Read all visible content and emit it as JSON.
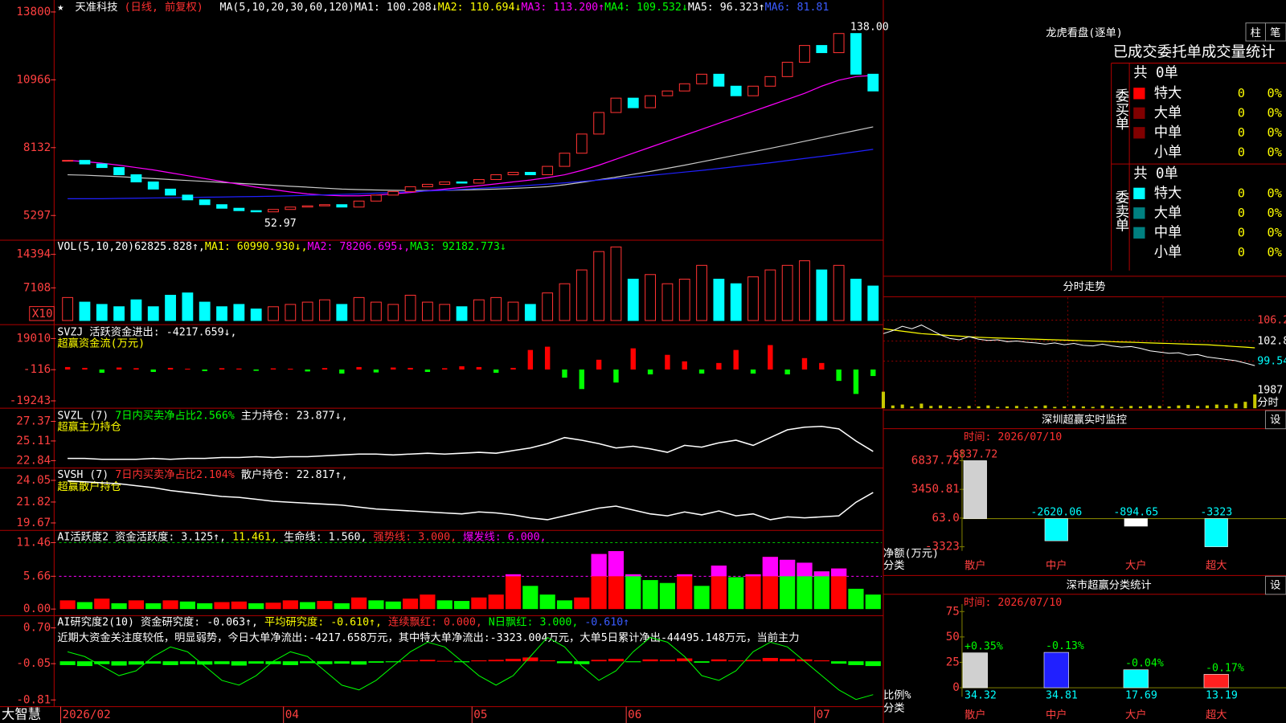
{
  "header": {
    "icon": "★",
    "name": "天准科技",
    "mode": "(日线, 前复权)",
    "items": [
      {
        "text": "MA(5,10,20,30,60,120)",
        "color": "#ffffff"
      },
      {
        "text": "MA1: 100.208↓",
        "color": "#ffffff"
      },
      {
        "text": "MA2: 110.694↓",
        "color": "#ffff00"
      },
      {
        "text": "MA3: 113.200↑",
        "color": "#ff00ff"
      },
      {
        "text": "MA4: 109.532↓",
        "color": "#00ff00"
      },
      {
        "text": "MA5: 96.323↑",
        "color": "#ffffff"
      },
      {
        "text": "MA6: 81.81",
        "color": "#3a5bff"
      }
    ]
  },
  "dates": [
    "2026/02",
    null,
    null,
    null,
    null,
    null,
    null,
    null,
    null,
    null,
    null,
    null,
    null,
    "04",
    null,
    null,
    null,
    null,
    null,
    null,
    null,
    null,
    null,
    null,
    "05",
    null,
    null,
    null,
    null,
    null,
    null,
    null,
    null,
    "06",
    null,
    null,
    null,
    null,
    null,
    null,
    null,
    null,
    null,
    null,
    "07",
    null,
    null,
    null
  ],
  "price": {
    "ylim": [
      4300,
      14300
    ],
    "yticks": [
      13800,
      10966,
      8132,
      5297
    ],
    "up_color": "#ff3232",
    "down_color": "#00ffff",
    "high_label": "138.00",
    "low_label": "52.97",
    "close": [
      7600,
      7450,
      7300,
      7000,
      6700,
      6400,
      6150,
      5950,
      5750,
      5600,
      5500,
      5450,
      5550,
      5650,
      5700,
      5750,
      5650,
      5900,
      6150,
      6300,
      6500,
      6600,
      6700,
      6650,
      6800,
      7000,
      7100,
      7000,
      7350,
      7900,
      8700,
      9600,
      10200,
      9800,
      10300,
      10500,
      10800,
      11200,
      10700,
      10300,
      10700,
      11100,
      11700,
      12400,
      12100,
      12900,
      11200,
      10500
    ],
    "lines": [
      {
        "color": "#c8c8c8",
        "values": [
          7000,
          6980,
          6950,
          6920,
          6880,
          6840,
          6800,
          6760,
          6720,
          6680,
          6640,
          6600,
          6560,
          6520,
          6480,
          6440,
          6400,
          6380,
          6360,
          6350,
          6340,
          6340,
          6350,
          6360,
          6380,
          6400,
          6430,
          6460,
          6500,
          6580,
          6680,
          6790,
          6900,
          7020,
          7140,
          7270,
          7400,
          7540,
          7680,
          7820,
          7960,
          8100,
          8250,
          8400,
          8550,
          8700,
          8850,
          9000
        ]
      },
      {
        "color": "#ff00ff",
        "values": [
          7600,
          7550,
          7480,
          7400,
          7300,
          7200,
          7080,
          6960,
          6840,
          6720,
          6600,
          6480,
          6380,
          6280,
          6200,
          6150,
          6120,
          6120,
          6150,
          6200,
          6260,
          6330,
          6400,
          6470,
          6540,
          6620,
          6700,
          6780,
          6880,
          7000,
          7180,
          7400,
          7650,
          7900,
          8150,
          8400,
          8650,
          8900,
          9150,
          9400,
          9650,
          9900,
          10150,
          10400,
          10700,
          10950,
          11100,
          11150
        ]
      },
      {
        "color": "#2020ff",
        "values": [
          6000,
          6000,
          6000,
          6010,
          6020,
          6030,
          6040,
          6050,
          6060,
          6070,
          6080,
          6090,
          6100,
          6120,
          6140,
          6160,
          6180,
          6200,
          6230,
          6260,
          6290,
          6320,
          6350,
          6390,
          6430,
          6470,
          6510,
          6560,
          6610,
          6660,
          6720,
          6780,
          6840,
          6900,
          6970,
          7040,
          7110,
          7180,
          7260,
          7340,
          7420,
          7500,
          7590,
          7680,
          7770,
          7860,
          7960,
          8060
        ]
      }
    ]
  },
  "volume": {
    "legend": [
      {
        "text": "VOL(5,10,20)",
        "color": "#ffffff"
      },
      {
        "text": "62825.828↑,",
        "color": "#ffffff"
      },
      {
        "text": "MA1: 60990.930↓,",
        "color": "#ffff00"
      },
      {
        "text": "MA2: 78206.695↓,",
        "color": "#ff00ff"
      },
      {
        "text": "MA3: 92182.773↓",
        "color": "#00ff00"
      }
    ],
    "unit": "X10",
    "ylim": [
      0,
      17300
    ],
    "yticks": [
      14394,
      7108
    ],
    "values": [
      5000,
      4000,
      3500,
      3000,
      4500,
      3000,
      5500,
      6000,
      4000,
      3000,
      3500,
      2500,
      3000,
      3500,
      4000,
      4500,
      3500,
      5000,
      4000,
      3500,
      5500,
      4000,
      3500,
      3000,
      4500,
      5000,
      4000,
      3500,
      6000,
      8000,
      11000,
      15000,
      16000,
      9000,
      10000,
      8000,
      9000,
      12000,
      9000,
      8000,
      9500,
      11000,
      12000,
      13000,
      11000,
      12000,
      9000,
      7500
    ]
  },
  "svzj": {
    "legend": [
      {
        "text": "SVZJ  活跃资金进出: -4217.659↓,",
        "color": "#ffffff"
      }
    ],
    "subtitle": "超赢资金流(万元)",
    "ylim": [
      -23270,
      27060
    ],
    "yticks": [
      19010,
      -116,
      -19243
    ],
    "values": [
      1500,
      1000,
      -2000,
      1200,
      800,
      -1500,
      1000,
      500,
      -1000,
      800,
      600,
      -800,
      700,
      500,
      -1200,
      900,
      -2500,
      1500,
      -1800,
      1200,
      1000,
      -1500,
      800,
      2000,
      1500,
      -2000,
      1000,
      12000,
      14000,
      -5000,
      -12000,
      6000,
      -8000,
      13000,
      -3000,
      9000,
      5000,
      -2500,
      4000,
      12000,
      -2500,
      15000,
      -3000,
      7000,
      4000,
      -7000,
      -15000,
      -4000
    ]
  },
  "svzl": {
    "legend": [
      {
        "text": "SVZL (7) ",
        "color": "#ffffff"
      },
      {
        "text": "7日内买卖净占比2.566%",
        "color": "#00ff00"
      },
      {
        "text": " 主力持仓: 23.877↓,",
        "color": "#ffffff"
      }
    ],
    "subtitle": "超赢主力持仓",
    "ylim": [
      22.08,
      28.79
    ],
    "yticks": [
      27.37,
      25.11,
      22.84
    ],
    "values": [
      23.1,
      23.1,
      23.0,
      23.0,
      23.0,
      23.1,
      23.0,
      23.1,
      23.1,
      23.2,
      23.2,
      23.3,
      23.2,
      23.3,
      23.3,
      23.4,
      23.5,
      23.6,
      23.6,
      23.5,
      23.6,
      23.7,
      23.6,
      23.7,
      23.8,
      23.7,
      24.0,
      24.3,
      24.8,
      25.5,
      25.2,
      24.8,
      24.3,
      24.5,
      24.2,
      23.8,
      24.6,
      24.4,
      24.9,
      25.2,
      24.6,
      25.5,
      26.4,
      26.7,
      26.8,
      26.5,
      25.1,
      23.9
    ]
  },
  "svsh": {
    "legend": [
      {
        "text": "SVSH (7) ",
        "color": "#ffffff"
      },
      {
        "text": "7日内买卖净占比2.104%",
        "color": "#ff3030"
      },
      {
        "text": " 散户持仓: 22.817↑,",
        "color": "#ffffff"
      }
    ],
    "subtitle": "超赢散户持仓",
    "ylim": [
      18.99,
      25.23
    ],
    "yticks": [
      24.05,
      21.82,
      19.67
    ],
    "values": [
      24.0,
      23.9,
      23.8,
      23.7,
      23.5,
      23.3,
      23.0,
      22.8,
      22.6,
      22.4,
      22.3,
      22.1,
      21.9,
      21.8,
      21.7,
      21.6,
      21.5,
      21.3,
      21.1,
      21.0,
      20.9,
      20.8,
      20.7,
      20.6,
      20.8,
      20.7,
      20.5,
      20.2,
      20.0,
      20.4,
      20.8,
      21.2,
      21.4,
      21.0,
      20.6,
      20.4,
      20.8,
      20.5,
      20.9,
      20.4,
      20.6,
      20.0,
      20.3,
      20.2,
      20.3,
      20.4,
      21.8,
      22.8
    ]
  },
  "ai": {
    "legend": [
      {
        "text": "AI活跃度2 资金活跃度: 3.125↑,",
        "color": "#ffffff"
      },
      {
        "text": " 11.461,",
        "color": "#ffff00"
      },
      {
        "text": " 生命线: 1.560,",
        "color": "#ffffff"
      },
      {
        "text": " 强势线: 3.000,",
        "color": "#ff3030"
      },
      {
        "text": " 爆发线: 6.000,",
        "color": "#ff00ff"
      }
    ],
    "ylim": [
      -0.99,
      13.44
    ],
    "yticks": [
      11.46,
      5.66,
      {
        "value": 0,
        "label": "0.00"
      }
    ],
    "values": [
      1.5,
      1.2,
      1.8,
      1.0,
      1.5,
      1.0,
      1.5,
      1.3,
      1.0,
      1.2,
      1.3,
      1.0,
      1.1,
      1.5,
      1.2,
      1.4,
      1.0,
      2.0,
      1.5,
      1.3,
      1.8,
      2.5,
      1.5,
      1.4,
      2.0,
      2.5,
      6.0,
      4.0,
      2.5,
      1.5,
      2.0,
      9.5,
      10.0,
      6.0,
      5.0,
      4.5,
      6.0,
      4.0,
      7.5,
      5.5,
      6.0,
      9.0,
      8.5,
      8.0,
      6.5,
      7.0,
      3.5,
      2.5
    ]
  },
  "research": {
    "legend": [
      {
        "text": "AI研究度2(10) 资金研究度: -0.063↑,",
        "color": "#ffffff"
      },
      {
        "text": " 平均研究度: -0.610↑,",
        "color": "#ffff00"
      },
      {
        "text": " 连续飘红: 0.000,",
        "color": "#ff3030"
      },
      {
        "text": " N日飘红: 3.000,",
        "color": "#00ff00"
      },
      {
        "text": " -0.610↑",
        "color": "#3a5bff"
      }
    ],
    "note": "近期大资金关注度较低，明显弱势，今日大单净流出:-4217.658万元，其中特大单净流出:-3323.004万元，大单5日累计净出-44495.148万元，当前主力",
    "ylim": [
      -0.95,
      0.94
    ],
    "yticks": [
      {
        "value": 0.7,
        "label": "0.70"
      },
      -0.05,
      -0.81
    ],
    "bars": [
      -0.08,
      -0.1,
      -0.06,
      -0.09,
      -0.07,
      -0.05,
      -0.08,
      -0.06,
      -0.07,
      -0.06,
      -0.09,
      -0.05,
      -0.06,
      -0.08,
      -0.04,
      -0.06,
      -0.05,
      -0.07,
      -0.03,
      -0.02,
      0.02,
      0.03,
      0.01,
      -0.02,
      0.02,
      0.03,
      0.05,
      0.08,
      0.02,
      -0.04,
      -0.06,
      0.03,
      0.05,
      -0.02,
      0.04,
      0.03,
      0.06,
      -0.03,
      0.04,
      0.02,
      0.03,
      0.07,
      0.05,
      0.04,
      0.02,
      -0.05,
      -0.08,
      -0.1
    ],
    "line": [
      0.2,
      0.1,
      -0.1,
      -0.3,
      -0.2,
      0.1,
      0.3,
      0.2,
      -0.1,
      -0.4,
      -0.5,
      -0.3,
      0.0,
      0.2,
      0.1,
      -0.2,
      -0.5,
      -0.6,
      -0.4,
      -0.1,
      0.2,
      0.4,
      0.3,
      0.0,
      -0.3,
      -0.5,
      -0.3,
      0.1,
      0.5,
      0.3,
      -0.1,
      -0.4,
      -0.2,
      0.2,
      0.5,
      0.4,
      0.1,
      -0.3,
      -0.4,
      -0.2,
      0.2,
      0.4,
      0.3,
      0.0,
      -0.3,
      -0.6,
      -0.8,
      -0.7
    ]
  },
  "footer": {
    "brand": "大智慧"
  },
  "dragon": {
    "title": "龙虎看盘(逐单)",
    "btn1": "柱",
    "btn2": "笔",
    "heading": "已成交委托单成交量统计",
    "buy": {
      "label": "委买单",
      "total": "共 0单",
      "rows": [
        {
          "name": "特大",
          "count": 0,
          "pct": "0%",
          "color": "#ff0000"
        },
        {
          "name": "大单",
          "count": 0,
          "pct": "0%",
          "color": "#800000"
        },
        {
          "name": "中单",
          "count": 0,
          "pct": "0%",
          "color": "#800000"
        },
        {
          "name": "小单",
          "count": 0,
          "pct": "0%"
        }
      ]
    },
    "sell": {
      "label": "委卖单",
      "total": "共 0单",
      "rows": [
        {
          "name": "特大",
          "count": 0,
          "pct": "0%",
          "color": "#00ffff"
        },
        {
          "name": "大单",
          "count": 0,
          "pct": "0%",
          "color": "#008080"
        },
        {
          "name": "中单",
          "count": 0,
          "pct": "0%",
          "color": "#008080"
        },
        {
          "name": "小单",
          "count": 0,
          "pct": "0%"
        }
      ]
    }
  },
  "intraday": {
    "title": "分时走势",
    "ylim": [
      96.14,
      109.87
    ],
    "yticks": [
      106.2,
      102.8,
      99.54
    ],
    "vol_ylim": [
      0,
      2500
    ],
    "vol_ticks": [
      1987
    ],
    "vol_label": "分时",
    "price": [
      104.0,
      104.5,
      105.2,
      104.8,
      105.4,
      104.6,
      103.8,
      103.2,
      103.0,
      103.5,
      103.1,
      102.9,
      103.0,
      102.7,
      102.8,
      102.6,
      102.5,
      102.3,
      102.5,
      102.2,
      102.4,
      102.1,
      102.0,
      102.3,
      102.0,
      101.8,
      101.9,
      101.6,
      101.2,
      101.0,
      100.8,
      100.9,
      100.5,
      100.6,
      100.2,
      100.0,
      99.8,
      99.6,
      99.2,
      98.8
    ],
    "avg": [
      104.8,
      104.6,
      104.4,
      104.2,
      104.0,
      103.9,
      103.8,
      103.7,
      103.6,
      103.5,
      103.4,
      103.35,
      103.3,
      103.25,
      103.2,
      103.15,
      103.1,
      103.05,
      103.0,
      102.95,
      102.9,
      102.85,
      102.8,
      102.75,
      102.7,
      102.65,
      102.6,
      102.55,
      102.5,
      102.45,
      102.4,
      102.35,
      102.3,
      102.25,
      102.2,
      102.1,
      102.0,
      101.9,
      101.8,
      101.7
    ],
    "volume": [
      1800,
      300,
      400,
      200,
      500,
      250,
      300,
      200,
      150,
      250,
      200,
      300,
      150,
      200,
      250,
      150,
      200,
      300,
      150,
      200,
      250,
      200,
      150,
      300,
      200,
      150,
      250,
      200,
      300,
      250,
      200,
      300,
      350,
      250,
      300,
      400,
      350,
      500,
      700,
      1500
    ]
  },
  "monitor": {
    "title": "深圳超赢实时监控",
    "button": "设",
    "time": "时间: 2026/07/10",
    "ylim": [
      -3807,
      8192
    ],
    "yticks": [
      6837.72,
      3450.81,
      {
        "value": 63,
        "label": "63.0"
      },
      -3323
    ],
    "categories": [
      "散户",
      "中户",
      "大户",
      "超大"
    ],
    "values": [
      6837.72,
      -2620.06,
      -894.65,
      -3323
    ],
    "colors": [
      "#d0d0d0",
      "#00ffff",
      "#ffffff",
      "#00ffff"
    ],
    "axis_label": "净额(万元)",
    "category_label": "分类"
  },
  "stats": {
    "title": "深市超赢分类统计",
    "button": "设",
    "time": "时间: 2026/07/10",
    "ylim": [
      -8.9,
      82.3
    ],
    "yticks": [
      75,
      50,
      25,
      0
    ],
    "categories": [
      "散户",
      "中户",
      "大户",
      "超大"
    ],
    "values": [
      34.32,
      34.81,
      17.69,
      13.19
    ],
    "pct_labels": [
      "+0.35%",
      "-0.13%",
      "-0.04%",
      "-0.17%"
    ],
    "colors": [
      "#d0d0d0",
      "#2020ff",
      "#00ffff",
      "#ff2020"
    ],
    "axis_label": "比例%",
    "category_label": "分类"
  }
}
